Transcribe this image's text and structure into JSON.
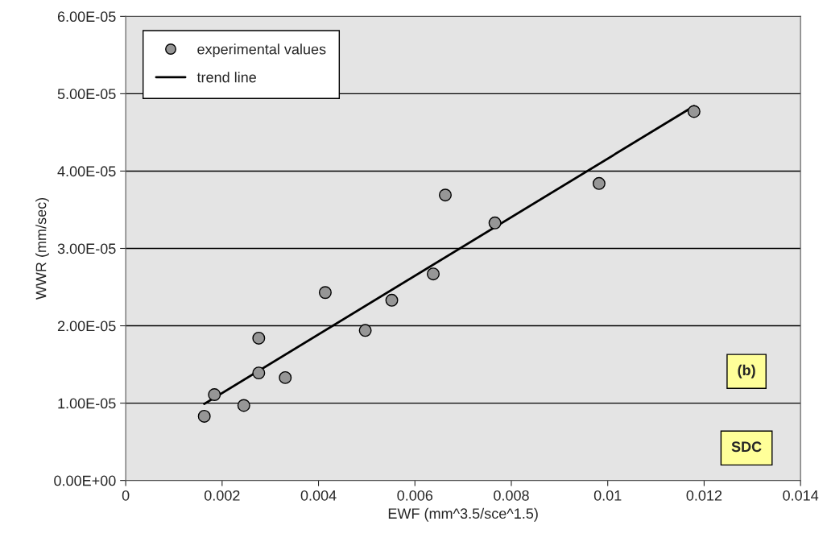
{
  "chart_data": {
    "type": "scatter",
    "xlabel": "EWF (mm^3.5/sce^1.5)",
    "ylabel": "WWR (mm/sec)",
    "series": [
      {
        "name": "experimental values",
        "color": "#969696",
        "marker": "circle",
        "x": [
          0.00163,
          0.00184,
          0.00245,
          0.00276,
          0.00276,
          0.00331,
          0.00414,
          0.00497,
          0.00552,
          0.00638,
          0.00663,
          0.00766,
          0.00982,
          0.01179
        ],
        "values": [
          8.3e-06,
          1.11e-05,
          9.7e-06,
          1.84e-05,
          1.39e-05,
          1.33e-05,
          2.43e-05,
          1.94e-05,
          2.33e-05,
          2.67e-05,
          3.69e-05,
          3.33e-05,
          3.84e-05,
          4.77e-05
        ]
      },
      {
        "name": "trend line",
        "type": "line",
        "color": "#000000",
        "line_style": "solid",
        "x": [
          0.00163,
          0.01179
        ],
        "values": [
          9.9e-06,
          4.84e-05
        ]
      }
    ],
    "xlim": [
      0,
      0.014
    ],
    "xticks": [
      0,
      0.002,
      0.004,
      0.006,
      0.008,
      0.01,
      0.012,
      0.014
    ],
    "ylim": [
      0,
      6e-05
    ],
    "yticks": [
      {
        "value": 0,
        "label": "0.00E+00"
      },
      {
        "value": 1e-05,
        "label": "1.00E-05"
      },
      {
        "value": 2e-05,
        "label": "2.00E-05"
      },
      {
        "value": 3e-05,
        "label": "3.00E-05"
      },
      {
        "value": 4e-05,
        "label": "4.00E-05"
      },
      {
        "value": 5e-05,
        "label": "5.00E-05"
      },
      {
        "value": 6e-05,
        "label": "6.00E-05"
      }
    ],
    "annotations": [
      "(b)",
      "SDC"
    ],
    "grid": "y",
    "legend": "top left"
  }
}
